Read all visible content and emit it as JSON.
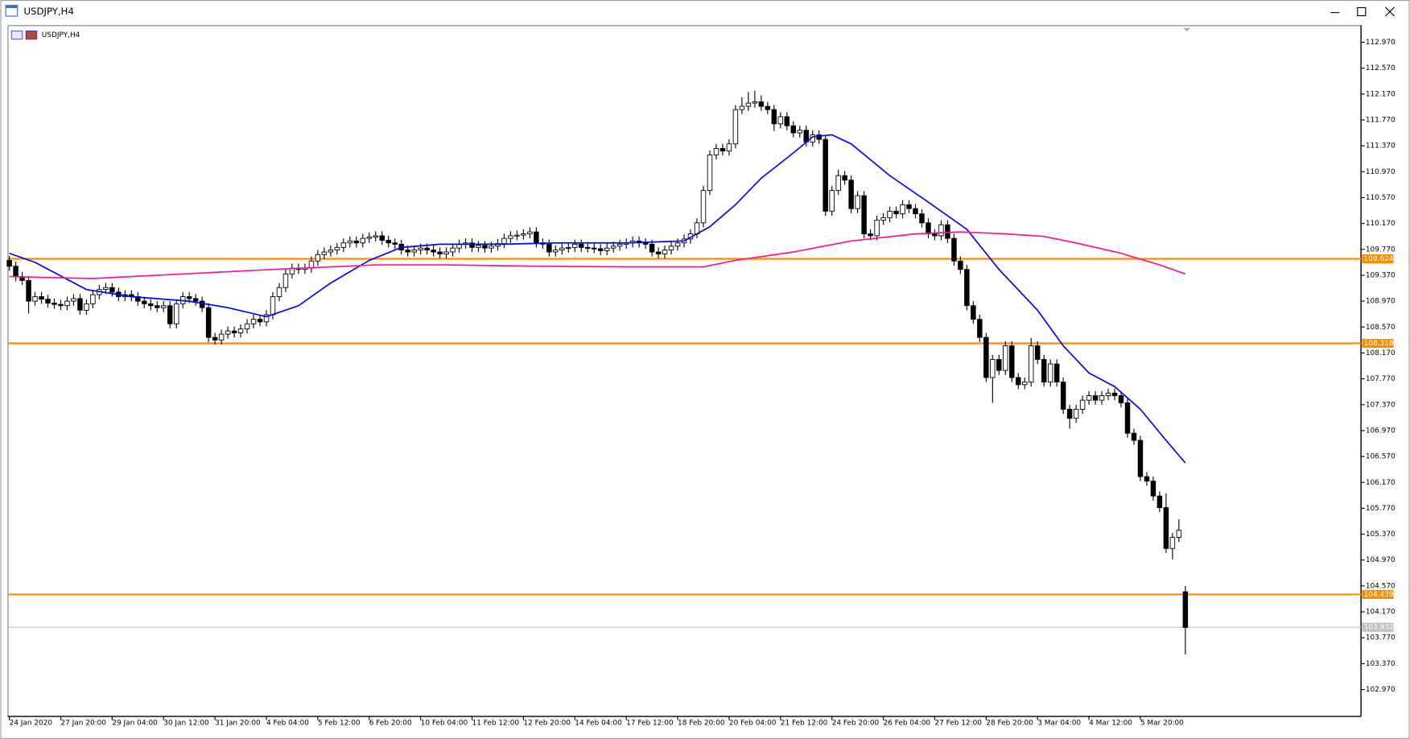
{
  "window": {
    "title": "USDJPY,H4"
  },
  "chart_data": {
    "type": "candlestick",
    "title": "USDJPY,H4",
    "x": [
      "24 Jan 2020",
      null,
      null,
      null,
      null,
      null,
      null,
      null,
      "27 Jan 20:00",
      null,
      null,
      null,
      null,
      null,
      null,
      null,
      "29 Jan 04:00",
      null,
      null,
      null,
      null,
      null,
      null,
      null,
      "30 Jan 12:00",
      null,
      null,
      null,
      null,
      null,
      null,
      null,
      "31 Jan 20:00",
      null,
      null,
      null,
      null,
      null,
      null,
      null,
      "4 Feb 04:00",
      null,
      null,
      null,
      null,
      null,
      null,
      null,
      "5 Feb 12:00",
      null,
      null,
      null,
      null,
      null,
      null,
      null,
      "6 Feb 20:00",
      null,
      null,
      null,
      null,
      null,
      null,
      null,
      "10 Feb 04:00",
      null,
      null,
      null,
      null,
      null,
      null,
      null,
      "11 Feb 12:00",
      null,
      null,
      null,
      null,
      null,
      null,
      null,
      "12 Feb 20:00",
      null,
      null,
      null,
      null,
      null,
      null,
      null,
      "14 Feb 04:00",
      null,
      null,
      null,
      null,
      null,
      null,
      null,
      "17 Feb 12:00",
      null,
      null,
      null,
      null,
      null,
      null,
      null,
      "18 Feb 20:00",
      null,
      null,
      null,
      null,
      null,
      null,
      null,
      "20 Feb 04:00",
      null,
      null,
      null,
      null,
      null,
      null,
      null,
      "21 Feb 12:00",
      null,
      null,
      null,
      null,
      null,
      null,
      null,
      "24 Feb 20:00",
      null,
      null,
      null,
      null,
      null,
      null,
      null,
      "26 Feb 04:00",
      null,
      null,
      null,
      null,
      null,
      null,
      null,
      "27 Feb 12:00",
      null,
      null,
      null,
      null,
      null,
      null,
      null,
      "28 Feb 20:00",
      null,
      null,
      null,
      null,
      null,
      null,
      null,
      "3 Mar 04:00",
      null,
      null,
      null,
      null,
      null,
      null,
      null,
      "4 Mar 12:00",
      null,
      null,
      null,
      null,
      null,
      null,
      null,
      "5 Mar 20:00",
      null,
      null,
      null,
      null,
      null,
      null,
      null
    ],
    "open": [
      109.6,
      109.51,
      109.35,
      109.29,
      108.97,
      109.04,
      109.0,
      108.94,
      108.92,
      108.9,
      108.97,
      109.01,
      108.83,
      108.93,
      109.07,
      109.15,
      109.18,
      109.11,
      109.04,
      109.07,
      109.04,
      108.97,
      108.93,
      108.9,
      108.87,
      108.9,
      108.62,
      108.93,
      109.04,
      109.01,
      108.97,
      108.87,
      108.41,
      108.37,
      108.46,
      108.51,
      108.48,
      108.54,
      108.62,
      108.69,
      108.65,
      108.76,
      109.04,
      109.18,
      109.39,
      109.48,
      109.46,
      109.48,
      109.59,
      109.69,
      109.73,
      109.76,
      109.8,
      109.87,
      109.9,
      109.87,
      109.94,
      109.96,
      109.98,
      109.91,
      109.87,
      109.85,
      109.76,
      109.73,
      109.76,
      109.79,
      109.76,
      109.73,
      109.7,
      109.73,
      109.79,
      109.85,
      109.87,
      109.8,
      109.83,
      109.79,
      109.82,
      109.86,
      109.94,
      109.98,
      109.99,
      110.01,
      110.04,
      109.87,
      109.85,
      109.73,
      109.76,
      109.79,
      109.8,
      109.85,
      109.8,
      109.79,
      109.78,
      109.75,
      109.79,
      109.82,
      109.85,
      109.87,
      109.9,
      109.87,
      109.85,
      109.73,
      109.7,
      109.76,
      109.82,
      109.87,
      109.93,
      110.01,
      110.18,
      110.68,
      111.23,
      111.33,
      111.29,
      111.4,
      111.93,
      111.98,
      112.03,
      112.05,
      111.98,
      111.93,
      111.71,
      111.82,
      111.68,
      111.57,
      111.61,
      111.43,
      111.54,
      111.47,
      110.36,
      110.68,
      110.91,
      110.84,
      110.4,
      110.6,
      110.01,
      109.98,
      110.22,
      110.26,
      110.36,
      110.32,
      110.46,
      110.4,
      110.32,
      110.18,
      110.01,
      109.98,
      110.15,
      109.94,
      109.59,
      109.46,
      108.9,
      108.69,
      108.41,
      107.79,
      108.07,
      107.9,
      108.28,
      107.79,
      107.68,
      107.72,
      108.28,
      108.07,
      107.72,
      108.0,
      107.72,
      107.3,
      107.16,
      107.3,
      107.44,
      107.51,
      107.44,
      107.51,
      107.55,
      107.51,
      107.4,
      106.93,
      106.82,
      106.26,
      106.19,
      105.96,
      105.78,
      105.15,
      105.32,
      104.48
    ],
    "high": [
      109.67,
      109.58,
      109.42,
      109.36,
      109.11,
      109.11,
      109.07,
      109.01,
      108.99,
      109.04,
      109.08,
      109.08,
      109.0,
      109.14,
      109.22,
      109.25,
      109.25,
      109.18,
      109.14,
      109.14,
      109.11,
      109.04,
      109.0,
      108.97,
      108.97,
      108.97,
      109.0,
      109.11,
      109.11,
      109.08,
      109.04,
      108.94,
      108.48,
      108.53,
      108.58,
      108.58,
      108.61,
      108.69,
      108.76,
      108.76,
      108.83,
      109.11,
      109.25,
      109.46,
      109.55,
      109.55,
      109.55,
      109.66,
      109.76,
      109.8,
      109.83,
      109.87,
      109.94,
      109.97,
      109.97,
      110.01,
      110.03,
      110.05,
      110.05,
      109.98,
      109.94,
      109.92,
      109.83,
      109.83,
      109.86,
      109.86,
      109.83,
      109.8,
      109.8,
      109.86,
      109.92,
      109.94,
      109.94,
      109.9,
      109.9,
      109.89,
      109.93,
      110.01,
      110.05,
      110.06,
      110.08,
      110.11,
      110.11,
      109.94,
      109.92,
      109.83,
      109.86,
      109.87,
      109.92,
      109.92,
      109.87,
      109.86,
      109.85,
      109.86,
      109.89,
      109.92,
      109.94,
      109.97,
      109.97,
      109.94,
      109.92,
      109.8,
      109.83,
      109.89,
      109.94,
      110.0,
      110.08,
      110.25,
      110.75,
      111.3,
      111.4,
      111.4,
      111.47,
      112.0,
      112.12,
      112.2,
      112.22,
      112.15,
      112.05,
      112.0,
      111.89,
      111.89,
      111.75,
      111.68,
      111.68,
      111.61,
      111.61,
      111.54,
      110.75,
      111.0,
      110.98,
      110.91,
      110.67,
      110.67,
      110.08,
      110.29,
      110.33,
      110.43,
      110.43,
      110.53,
      110.53,
      110.47,
      110.39,
      110.25,
      110.08,
      110.22,
      110.22,
      110.01,
      109.66,
      109.53,
      108.97,
      108.76,
      108.48,
      108.14,
      108.14,
      108.35,
      108.35,
      107.86,
      107.79,
      108.4,
      108.35,
      108.14,
      108.07,
      108.07,
      107.79,
      107.37,
      107.37,
      107.51,
      107.58,
      107.58,
      107.58,
      107.62,
      107.62,
      107.58,
      107.47,
      107.0,
      106.89,
      106.33,
      106.26,
      106.03,
      106.0,
      105.39,
      105.6,
      104.57
    ],
    "low": [
      109.44,
      109.28,
      109.22,
      108.78,
      108.9,
      108.93,
      108.87,
      108.85,
      108.83,
      108.83,
      108.9,
      108.76,
      108.76,
      108.86,
      109.0,
      109.08,
      109.04,
      108.97,
      108.97,
      108.97,
      108.9,
      108.86,
      108.83,
      108.8,
      108.8,
      108.55,
      108.55,
      108.86,
      108.94,
      108.9,
      108.8,
      108.34,
      108.3,
      108.3,
      108.39,
      108.41,
      108.41,
      108.47,
      108.55,
      108.58,
      108.58,
      108.69,
      108.97,
      109.11,
      109.32,
      109.39,
      109.39,
      109.41,
      109.52,
      109.62,
      109.66,
      109.69,
      109.73,
      109.8,
      109.8,
      109.8,
      109.87,
      109.89,
      109.84,
      109.8,
      109.78,
      109.69,
      109.66,
      109.66,
      109.69,
      109.69,
      109.66,
      109.63,
      109.63,
      109.66,
      109.72,
      109.78,
      109.73,
      109.73,
      109.72,
      109.72,
      109.75,
      109.79,
      109.87,
      109.91,
      109.92,
      109.94,
      109.8,
      109.78,
      109.66,
      109.66,
      109.69,
      109.72,
      109.73,
      109.73,
      109.72,
      109.71,
      109.68,
      109.68,
      109.72,
      109.75,
      109.78,
      109.8,
      109.8,
      109.78,
      109.66,
      109.63,
      109.63,
      109.69,
      109.75,
      109.8,
      109.86,
      109.94,
      110.11,
      110.61,
      111.16,
      111.22,
      111.22,
      111.33,
      111.86,
      111.91,
      111.96,
      111.91,
      111.86,
      111.6,
      111.64,
      111.61,
      111.5,
      111.5,
      111.36,
      111.36,
      111.4,
      110.29,
      110.29,
      110.61,
      110.77,
      110.33,
      110.33,
      109.94,
      109.91,
      109.91,
      110.15,
      110.19,
      110.25,
      110.25,
      110.33,
      110.25,
      110.11,
      109.94,
      109.91,
      109.91,
      109.87,
      109.52,
      109.39,
      108.83,
      108.62,
      108.34,
      107.72,
      107.4,
      107.83,
      107.83,
      107.72,
      107.61,
      107.61,
      107.65,
      108.0,
      107.65,
      107.65,
      107.65,
      107.23,
      107.0,
      107.09,
      107.23,
      107.37,
      107.37,
      107.37,
      107.44,
      107.44,
      107.33,
      106.86,
      106.75,
      106.19,
      106.12,
      105.89,
      105.71,
      105.08,
      104.98,
      105.25,
      103.51
    ],
    "close": [
      109.51,
      109.35,
      109.29,
      108.97,
      109.04,
      109.0,
      108.94,
      108.92,
      108.9,
      108.97,
      109.01,
      108.83,
      108.93,
      109.07,
      109.15,
      109.18,
      109.11,
      109.04,
      109.07,
      109.04,
      108.97,
      108.93,
      108.9,
      108.87,
      108.9,
      108.62,
      108.93,
      109.04,
      109.01,
      108.97,
      108.87,
      108.41,
      108.37,
      108.46,
      108.51,
      108.48,
      108.54,
      108.62,
      108.69,
      108.65,
      108.76,
      109.04,
      109.18,
      109.39,
      109.48,
      109.46,
      109.48,
      109.59,
      109.69,
      109.73,
      109.76,
      109.8,
      109.87,
      109.9,
      109.87,
      109.94,
      109.96,
      109.98,
      109.91,
      109.87,
      109.85,
      109.76,
      109.73,
      109.76,
      109.79,
      109.76,
      109.73,
      109.7,
      109.73,
      109.79,
      109.85,
      109.87,
      109.8,
      109.83,
      109.79,
      109.82,
      109.86,
      109.94,
      109.98,
      109.99,
      110.01,
      110.04,
      109.87,
      109.85,
      109.73,
      109.76,
      109.79,
      109.8,
      109.85,
      109.8,
      109.79,
      109.78,
      109.75,
      109.79,
      109.82,
      109.85,
      109.87,
      109.9,
      109.87,
      109.85,
      109.73,
      109.7,
      109.76,
      109.82,
      109.87,
      109.93,
      110.01,
      110.18,
      110.68,
      111.23,
      111.33,
      111.29,
      111.4,
      111.93,
      111.98,
      112.03,
      112.05,
      111.98,
      111.93,
      111.71,
      111.82,
      111.68,
      111.57,
      111.61,
      111.43,
      111.54,
      111.47,
      110.36,
      110.68,
      110.91,
      110.84,
      110.4,
      110.6,
      110.01,
      109.98,
      110.22,
      110.26,
      110.36,
      110.32,
      110.46,
      110.4,
      110.32,
      110.18,
      110.01,
      109.98,
      110.15,
      109.94,
      109.59,
      109.46,
      108.9,
      108.69,
      108.41,
      107.79,
      108.07,
      107.9,
      108.28,
      107.79,
      107.68,
      107.72,
      108.28,
      108.07,
      107.72,
      108.0,
      107.72,
      107.3,
      107.16,
      107.3,
      107.44,
      107.51,
      107.44,
      107.51,
      107.55,
      107.51,
      107.4,
      106.93,
      106.82,
      106.26,
      106.19,
      105.96,
      105.78,
      105.15,
      105.32,
      105.43,
      103.93
    ],
    "series": [
      {
        "color": "#0000ff",
        "x": [
          0,
          4,
          12,
          19,
          28,
          34,
          40,
          45,
          50,
          56,
          61,
          67,
          77,
          85,
          96,
          105,
          109,
          113,
          117,
          122,
          125,
          128,
          131,
          137,
          143,
          149,
          154,
          160,
          164,
          168,
          172,
          176,
          180,
          183
        ],
        "values": [
          109.71,
          109.57,
          109.15,
          109.04,
          108.97,
          108.87,
          108.73,
          108.9,
          109.25,
          109.6,
          109.8,
          109.85,
          109.85,
          109.87,
          109.87,
          109.9,
          110.12,
          110.46,
          110.87,
          111.26,
          111.51,
          111.54,
          111.4,
          110.91,
          110.5,
          110.08,
          109.46,
          108.83,
          108.28,
          107.86,
          107.65,
          107.3,
          106.82,
          106.47
        ]
      },
      {
        "color": "#ff1493",
        "x": [
          0,
          13,
          27,
          41,
          57,
          68,
          82,
          96,
          108,
          113,
          122,
          131,
          141,
          148,
          155,
          161,
          166,
          173,
          179,
          183
        ],
        "values": [
          109.35,
          109.32,
          109.39,
          109.46,
          109.53,
          109.53,
          109.51,
          109.5,
          109.5,
          109.6,
          109.73,
          109.9,
          110.01,
          110.04,
          110.01,
          109.97,
          109.87,
          109.71,
          109.53,
          109.39
        ]
      }
    ],
    "levels": [
      109.624,
      108.318,
      104.439
    ],
    "level_color": "#ff8c00",
    "bid": 103.932,
    "bid_color": "#c0c0c0",
    "ylim": [
      102.553,
      113.234
    ],
    "yticks": [
      {
        "value": 112.97,
        "label": "112.970"
      },
      {
        "value": 112.57,
        "label": "112.570"
      },
      {
        "value": 112.17,
        "label": "112.170"
      },
      {
        "value": 111.77,
        "label": "111.770"
      },
      {
        "value": 111.37,
        "label": "111.370"
      },
      {
        "value": 110.97,
        "label": "110.970"
      },
      {
        "value": 110.57,
        "label": "110.570"
      },
      {
        "value": 110.17,
        "label": "110.170"
      },
      {
        "value": 109.77,
        "label": "109.770"
      },
      {
        "value": 109.37,
        "label": "109.370"
      },
      {
        "value": 108.97,
        "label": "108.970"
      },
      {
        "value": 108.57,
        "label": "108.570"
      },
      {
        "value": 108.17,
        "label": "108.170"
      },
      {
        "value": 107.77,
        "label": "107.770"
      },
      {
        "value": 107.37,
        "label": "107.370"
      },
      {
        "value": 106.97,
        "label": "106.970"
      },
      {
        "value": 106.57,
        "label": "106.570"
      },
      {
        "value": 106.17,
        "label": "106.170"
      },
      {
        "value": 105.77,
        "label": "105.770"
      },
      {
        "value": 105.37,
        "label": "105.370"
      },
      {
        "value": 104.97,
        "label": "104.970"
      },
      {
        "value": 104.57,
        "label": "104.570"
      },
      {
        "value": 104.17,
        "label": "104.170"
      },
      {
        "value": 103.77,
        "label": "103.770"
      },
      {
        "value": 103.37,
        "label": "103.370"
      },
      {
        "value": 102.97,
        "label": "102.970"
      }
    ]
  }
}
